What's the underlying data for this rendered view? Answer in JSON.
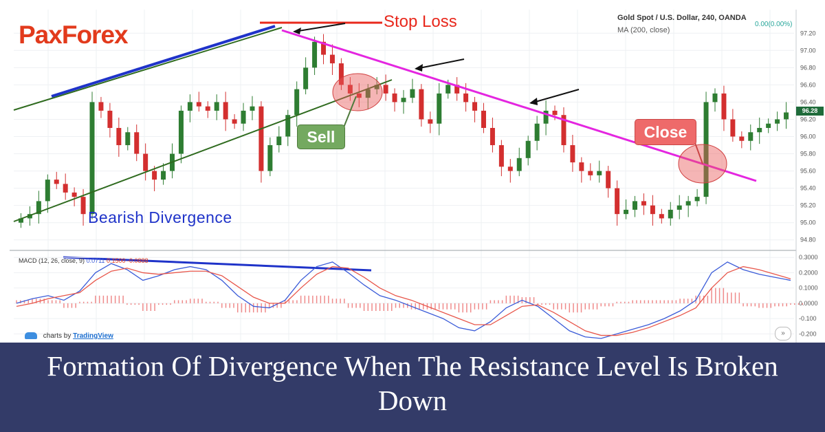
{
  "brand": {
    "logo_part1": "Pa",
    "logo_x": "x",
    "logo_part2": "Forex",
    "color": "#e23a1c"
  },
  "header": {
    "symbol": "Gold Spot / U.S. Dollar, 240, OANDA",
    "indicator": "MA (200, close)",
    "change": "0.00(0.00%)"
  },
  "annotations": {
    "stop_loss": "Stop Loss",
    "bearish_divergence": "Bearish Divergence",
    "sell": "Sell",
    "close": "Close"
  },
  "price_tag": "96.28",
  "macd": {
    "label": "MACD (12, 26, close, 9)",
    "v1": "0.0711",
    "v2": "0.1500",
    "v3": "-0.0888"
  },
  "footer": {
    "credit": "charts by",
    "link": "TradingView",
    "scroll": "»"
  },
  "banner": {
    "title": "Formation Of Divergence When The Resistance Level Is Broken Down"
  },
  "chart_data": [
    {
      "type": "candlestick",
      "y_ticks": [
        "97.20",
        "97.00",
        "96.80",
        "96.60",
        "96.40",
        "96.20",
        "96.00",
        "95.80",
        "95.60",
        "95.40",
        "95.20",
        "95.00",
        "94.80"
      ],
      "ylim": [
        94.75,
        97.25
      ],
      "close_approx": [
        95.05,
        95.1,
        95.25,
        95.5,
        95.45,
        95.35,
        95.3,
        95.1,
        96.4,
        96.3,
        96.1,
        95.9,
        96.05,
        95.8,
        95.6,
        95.5,
        95.6,
        95.8,
        96.3,
        96.4,
        96.35,
        96.3,
        96.4,
        96.2,
        96.15,
        96.3,
        96.35,
        95.6,
        95.9,
        96.0,
        96.25,
        96.55,
        96.8,
        97.1,
        96.95,
        96.85,
        96.6,
        96.5,
        96.45,
        96.55,
        96.6,
        96.5,
        96.4,
        96.45,
        96.55,
        96.2,
        96.15,
        96.5,
        96.6,
        96.5,
        96.4,
        96.3,
        96.1,
        95.9,
        95.65,
        95.6,
        95.75,
        95.95,
        96.15,
        96.3,
        96.25,
        95.9,
        95.7,
        95.6,
        95.55,
        95.6,
        95.4,
        95.1,
        95.15,
        95.25,
        95.2,
        95.1,
        95.05,
        95.15,
        95.2,
        95.25,
        95.3,
        96.4,
        96.5,
        96.2,
        96.0,
        95.95,
        96.05,
        96.1,
        96.15,
        96.2,
        96.28
      ],
      "color_up": "#2e7d32",
      "color_down": "#d32f2f"
    },
    {
      "type": "line",
      "name": "MACD",
      "y_ticks": [
        "0.3000",
        "0.2000",
        "0.1000",
        "0.0000",
        "-0.100",
        "-0.200"
      ],
      "ylim": [
        -0.23,
        0.31
      ],
      "series": [
        {
          "name": "MACD",
          "color": "#3a5bd8",
          "values": [
            0.0,
            0.03,
            0.05,
            0.02,
            0.08,
            0.2,
            0.26,
            0.22,
            0.15,
            0.18,
            0.22,
            0.24,
            0.22,
            0.15,
            0.05,
            -0.02,
            -0.03,
            0.02,
            0.15,
            0.24,
            0.27,
            0.2,
            0.12,
            0.05,
            0.02,
            -0.02,
            -0.06,
            -0.1,
            -0.16,
            -0.18,
            -0.12,
            -0.03,
            0.02,
            -0.02,
            -0.1,
            -0.18,
            -0.22,
            -0.23,
            -0.2,
            -0.17,
            -0.14,
            -0.1,
            -0.05,
            0.02,
            0.2,
            0.27,
            0.22,
            0.19,
            0.17,
            0.15
          ]
        },
        {
          "name": "Signal",
          "color": "#e8564a",
          "values": [
            -0.02,
            0.0,
            0.03,
            0.05,
            0.07,
            0.15,
            0.21,
            0.23,
            0.2,
            0.19,
            0.2,
            0.21,
            0.21,
            0.18,
            0.11,
            0.04,
            0.0,
            0.0,
            0.1,
            0.19,
            0.24,
            0.23,
            0.17,
            0.1,
            0.05,
            0.02,
            -0.02,
            -0.06,
            -0.1,
            -0.14,
            -0.14,
            -0.08,
            -0.02,
            -0.01,
            -0.06,
            -0.12,
            -0.18,
            -0.21,
            -0.21,
            -0.19,
            -0.16,
            -0.12,
            -0.08,
            -0.03,
            0.1,
            0.2,
            0.24,
            0.22,
            0.19,
            0.16
          ]
        }
      ]
    }
  ]
}
